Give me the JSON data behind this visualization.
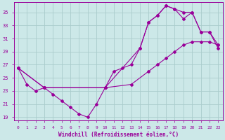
{
  "xlabel": "Windchill (Refroidissement éolien,°C)",
  "ylabel": "",
  "xlim": [
    -0.5,
    23.5
  ],
  "ylim": [
    18.5,
    36.5
  ],
  "yticks": [
    19,
    21,
    23,
    25,
    27,
    29,
    31,
    33,
    35
  ],
  "xticks": [
    0,
    1,
    2,
    3,
    4,
    5,
    6,
    7,
    8,
    9,
    10,
    11,
    12,
    13,
    14,
    15,
    16,
    17,
    18,
    19,
    20,
    21,
    22,
    23
  ],
  "bg_color": "#cce8e8",
  "grid_color": "#aacccc",
  "line_color": "#990099",
  "line1_x": [
    0,
    1,
    2,
    3,
    4,
    5,
    6,
    7,
    8,
    9,
    10,
    11,
    12,
    13,
    14,
    15,
    16,
    17,
    18,
    19,
    20,
    21,
    22,
    23
  ],
  "line1_y": [
    26.5,
    24.0,
    23.0,
    23.5,
    22.5,
    21.5,
    20.5,
    19.5,
    19.0,
    21.0,
    23.5,
    26.0,
    26.5,
    27.0,
    29.5,
    33.5,
    34.5,
    36.0,
    35.5,
    35.0,
    35.0,
    32.0,
    32.0,
    30.0
  ],
  "line2_x": [
    0,
    3,
    10,
    13,
    15,
    16,
    17,
    18,
    19,
    20,
    21,
    22,
    23
  ],
  "line2_y": [
    26.5,
    23.5,
    23.5,
    24.0,
    26.0,
    27.0,
    28.0,
    29.0,
    30.0,
    30.5,
    30.5,
    30.5,
    30.0
  ],
  "line3_x": [
    0,
    3,
    10,
    14,
    15,
    16,
    17,
    18,
    19,
    20,
    21,
    22,
    23
  ],
  "line3_y": [
    26.5,
    23.5,
    23.5,
    29.5,
    33.5,
    34.5,
    36.0,
    35.5,
    34.0,
    35.0,
    32.0,
    32.0,
    29.5
  ],
  "marker": "D",
  "markersize": 2.0,
  "linewidth": 0.8
}
